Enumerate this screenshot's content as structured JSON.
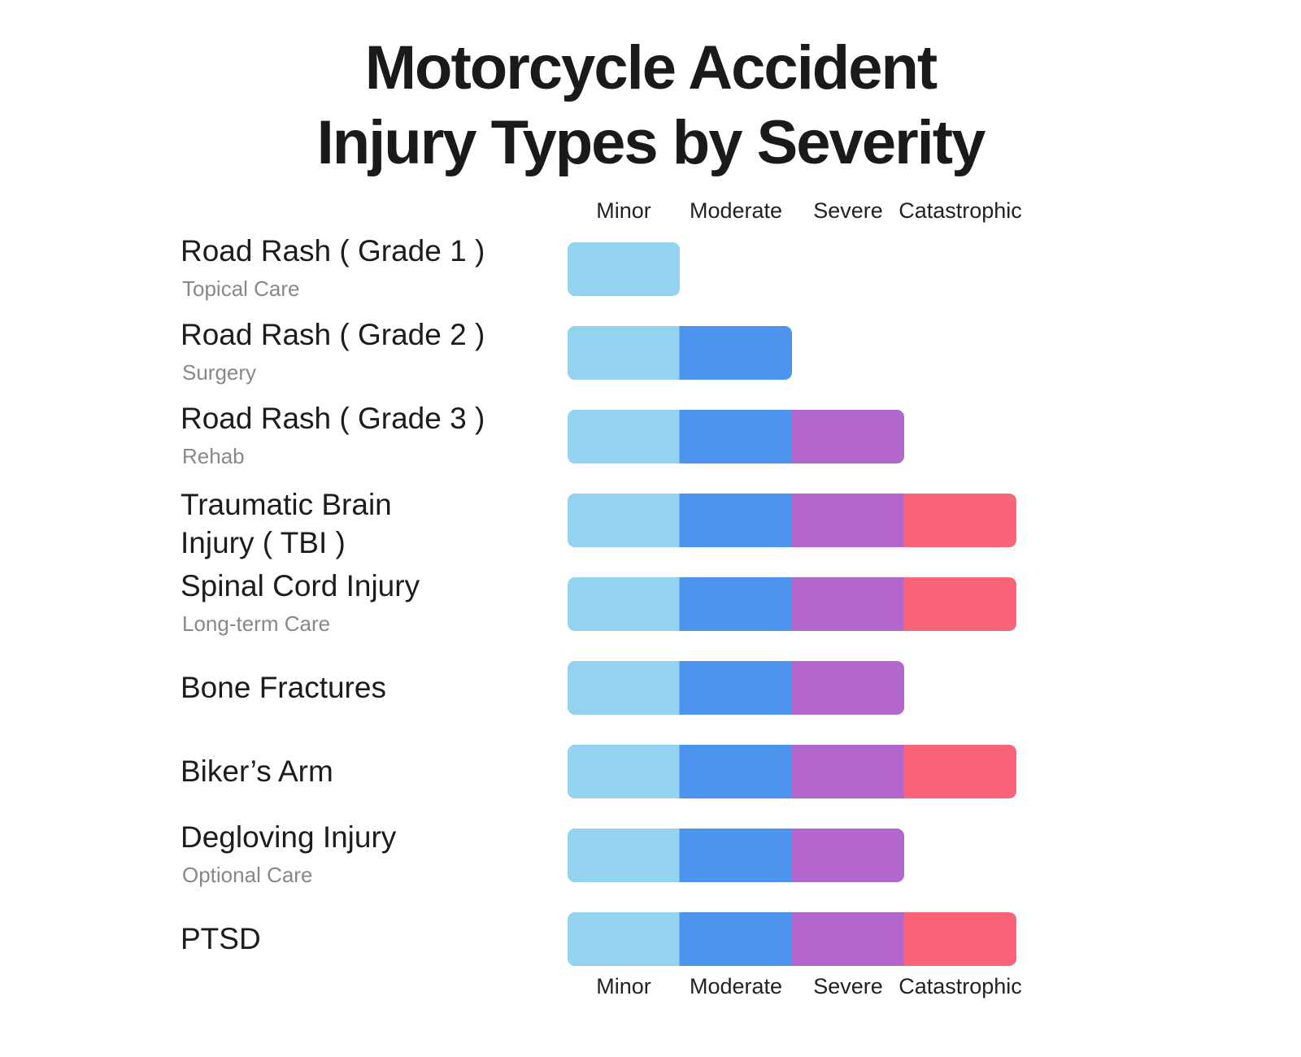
{
  "title_lines": [
    "Motorcycle Accident",
    "Injury Types by Severity"
  ],
  "colors": {
    "Minor": "#93d3f0",
    "Moderate": "#4d94ee",
    "Severe": "#b366cc",
    "Catastrophic": "#fa6478"
  },
  "chart_data": {
    "type": "bar",
    "orientation": "horizontal",
    "stacked": true,
    "title": "Motorcycle Accident Injury Types by Severity",
    "severity_levels": [
      "Minor",
      "Moderate",
      "Severe",
      "Catastrophic"
    ],
    "axis_labels_top": [
      "Minor",
      "Moderate",
      "Severe",
      "Catastrophic"
    ],
    "axis_labels_bottom": [
      "Minor",
      "Moderate",
      "Severe",
      "Catastrophic"
    ],
    "xlim": [
      0,
      4
    ],
    "grid": false,
    "legend": "none",
    "categories": [
      {
        "label_lines": [
          "Road Rash ( Grade 1 )"
        ],
        "sublabel": "Topical Care",
        "max_severity": 1
      },
      {
        "label_lines": [
          "Road Rash ( Grade 2 )"
        ],
        "sublabel": "Surgery",
        "max_severity": 2
      },
      {
        "label_lines": [
          "Road Rash ( Grade 3 )"
        ],
        "sublabel": "Rehab",
        "max_severity": 3
      },
      {
        "label_lines": [
          "Traumatic Brain",
          "Injury ( TBI )"
        ],
        "sublabel": "",
        "max_severity": 4
      },
      {
        "label_lines": [
          "Spinal Cord Injury"
        ],
        "sublabel": "Long-term Care",
        "max_severity": 4
      },
      {
        "label_lines": [
          "Bone Fractures"
        ],
        "sublabel": "",
        "max_severity": 3
      },
      {
        "label_lines": [
          "Biker’s Arm"
        ],
        "sublabel": "",
        "max_severity": 4
      },
      {
        "label_lines": [
          "Degloving Injury"
        ],
        "sublabel": "Optional Care",
        "max_severity": 3
      },
      {
        "label_lines": [
          "PTSD"
        ],
        "sublabel": "",
        "max_severity": 4
      }
    ]
  }
}
